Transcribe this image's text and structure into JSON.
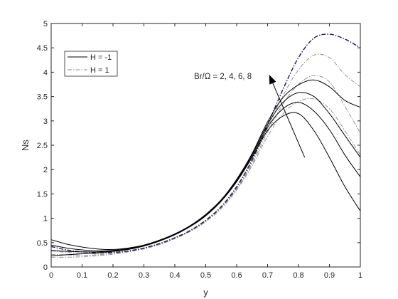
{
  "chart_data": {
    "type": "line",
    "xlabel": "y",
    "ylabel": "Ns",
    "xlim": [
      0,
      1
    ],
    "ylim": [
      0,
      5
    ],
    "xticks": [
      "0",
      "0.1",
      "0.2",
      "0.3",
      "0.4",
      "0.5",
      "0.6",
      "0.7",
      "0.8",
      "0.9",
      "1"
    ],
    "yticks": [
      "0",
      "0.5",
      "1",
      "1.5",
      "2",
      "2.5",
      "3",
      "3.5",
      "4",
      "4.5",
      "5"
    ],
    "grid": false,
    "legend": {
      "placement": "top-left",
      "entries": [
        {
          "label": "H = -1",
          "style": "solid"
        },
        {
          "label": "H = 1",
          "style": "dash-dot"
        }
      ]
    },
    "annotation": {
      "text": "Br/Ω = 2, 4, 6, 8",
      "arrow_from": [
        0.82,
        2.25
      ],
      "arrow_to": [
        0.705,
        3.95
      ]
    },
    "x": [
      0,
      0.05,
      0.1,
      0.15,
      0.2,
      0.25,
      0.3,
      0.35,
      0.4,
      0.45,
      0.5,
      0.55,
      0.6,
      0.65,
      0.7,
      0.75,
      0.8,
      0.85,
      0.9,
      0.95,
      1.0
    ],
    "series": [
      {
        "group": "H = -1",
        "br": 2,
        "style": "solid",
        "color": "#000000",
        "values": [
          0.23,
          0.25,
          0.27,
          0.29,
          0.32,
          0.36,
          0.43,
          0.53,
          0.66,
          0.83,
          1.05,
          1.35,
          1.75,
          2.25,
          2.8,
          3.1,
          3.15,
          2.8,
          2.25,
          1.65,
          1.15
        ]
      },
      {
        "group": "H = -1",
        "br": 4,
        "style": "solid",
        "color": "#000000",
        "values": [
          0.34,
          0.32,
          0.31,
          0.31,
          0.33,
          0.37,
          0.44,
          0.54,
          0.67,
          0.84,
          1.06,
          1.36,
          1.77,
          2.28,
          2.87,
          3.25,
          3.38,
          3.2,
          2.82,
          2.3,
          1.85
        ]
      },
      {
        "group": "H = -1",
        "br": 6,
        "style": "solid",
        "color": "#000000",
        "values": [
          0.45,
          0.39,
          0.35,
          0.33,
          0.34,
          0.38,
          0.44,
          0.54,
          0.67,
          0.84,
          1.07,
          1.37,
          1.79,
          2.31,
          2.93,
          3.38,
          3.58,
          3.5,
          3.15,
          2.7,
          2.25
        ]
      },
      {
        "group": "H = -1",
        "br": 8,
        "style": "solid",
        "color": "#000000",
        "values": [
          0.56,
          0.47,
          0.41,
          0.37,
          0.36,
          0.39,
          0.45,
          0.55,
          0.68,
          0.85,
          1.08,
          1.38,
          1.8,
          2.33,
          2.98,
          3.48,
          3.74,
          3.84,
          3.7,
          3.42,
          3.28
        ]
      },
      {
        "group": "H = 1",
        "br": 2,
        "style": "dash-dot",
        "color": "#8a8a8a",
        "values": [
          0.2,
          0.2,
          0.21,
          0.23,
          0.26,
          0.31,
          0.37,
          0.46,
          0.58,
          0.73,
          0.93,
          1.2,
          1.58,
          2.08,
          2.68,
          3.15,
          3.4,
          3.45,
          3.25,
          2.8,
          2.3
        ]
      },
      {
        "group": "H = 1",
        "br": 4,
        "style": "dash-dot",
        "color": "#8a8a8a",
        "values": [
          0.26,
          0.25,
          0.24,
          0.25,
          0.28,
          0.32,
          0.38,
          0.47,
          0.59,
          0.74,
          0.94,
          1.22,
          1.6,
          2.12,
          2.77,
          3.35,
          3.75,
          3.93,
          3.8,
          3.3,
          2.75
        ]
      },
      {
        "group": "H = 1",
        "br": 6,
        "style": "dash-dot",
        "color": "#8a8a8a",
        "values": [
          0.33,
          0.3,
          0.28,
          0.27,
          0.29,
          0.33,
          0.39,
          0.47,
          0.59,
          0.75,
          0.95,
          1.23,
          1.62,
          2.16,
          2.85,
          3.52,
          4.05,
          4.35,
          4.3,
          3.95,
          3.7
        ]
      },
      {
        "group": "H = 1",
        "br": 8,
        "style": "dash-dot",
        "color": "#1a1a4a",
        "values": [
          0.42,
          0.35,
          0.31,
          0.3,
          0.3,
          0.33,
          0.39,
          0.48,
          0.6,
          0.75,
          0.96,
          1.24,
          1.65,
          2.2,
          2.92,
          3.65,
          4.3,
          4.7,
          4.78,
          4.68,
          4.5
        ]
      }
    ]
  }
}
